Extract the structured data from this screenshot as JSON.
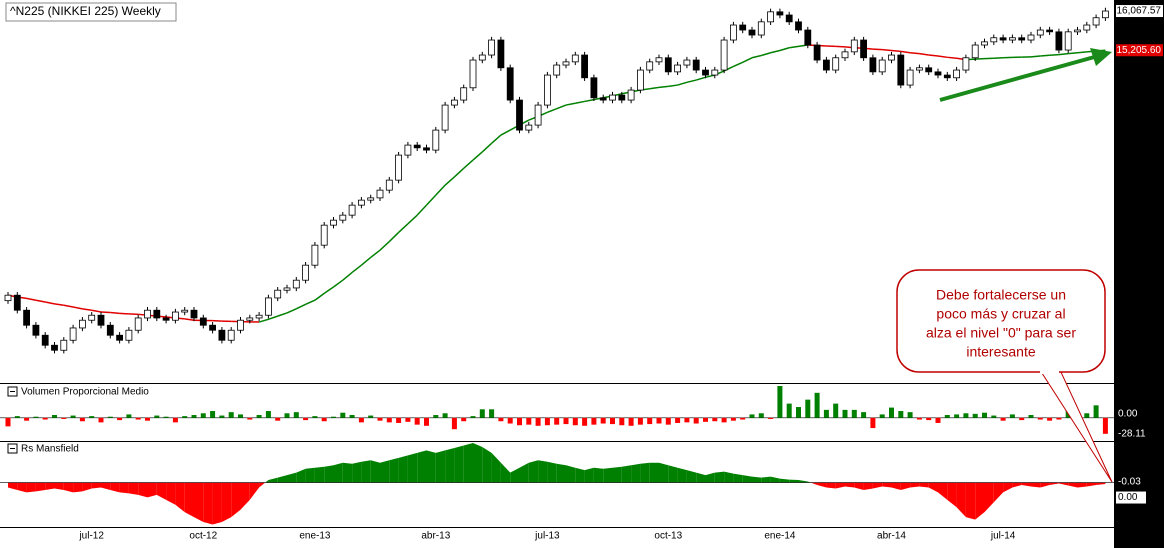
{
  "chart_data": [
    {
      "type": "candlestick",
      "title": "^N225 (NIKKEI 225) Weekly",
      "categories": [
        null,
        null,
        null,
        null,
        null,
        null,
        null,
        null,
        null,
        "jul-12",
        null,
        null,
        null,
        null,
        null,
        null,
        null,
        null,
        null,
        null,
        null,
        "oct-12",
        null,
        null,
        null,
        null,
        null,
        null,
        null,
        null,
        null,
        null,
        null,
        "ene-13",
        null,
        null,
        null,
        null,
        null,
        null,
        null,
        null,
        null,
        null,
        null,
        null,
        "abr-13",
        null,
        null,
        null,
        null,
        null,
        null,
        null,
        null,
        null,
        null,
        null,
        "jul-13",
        null,
        null,
        null,
        null,
        null,
        null,
        null,
        null,
        null,
        null,
        null,
        null,
        "oct-13",
        null,
        null,
        null,
        null,
        null,
        null,
        null,
        null,
        null,
        null,
        null,
        "ene-14",
        null,
        null,
        null,
        null,
        null,
        null,
        null,
        null,
        null,
        null,
        null,
        "abr-14",
        null,
        null,
        null,
        null,
        null,
        null,
        null,
        null,
        null,
        null,
        null,
        "jul-14",
        null,
        null,
        null,
        null,
        null,
        null,
        null,
        null,
        null,
        null,
        null
      ],
      "ohlc": [
        [
          9700,
          9890,
          9630,
          9820
        ],
        [
          9820,
          9890,
          9420,
          9490
        ],
        [
          9490,
          9560,
          9090,
          9160
        ],
        [
          9160,
          9230,
          8870,
          8940
        ],
        [
          8940,
          9010,
          8650,
          8720
        ],
        [
          8720,
          8790,
          8540,
          8610
        ],
        [
          8610,
          8900,
          8540,
          8830
        ],
        [
          8830,
          9170,
          8760,
          9100
        ],
        [
          9100,
          9340,
          9030,
          9270
        ],
        [
          9270,
          9450,
          9200,
          9380
        ],
        [
          9380,
          9450,
          9090,
          9160
        ],
        [
          9160,
          9230,
          8870,
          8940
        ],
        [
          8940,
          9010,
          8760,
          8830
        ],
        [
          8830,
          9120,
          8760,
          9050
        ],
        [
          9050,
          9390,
          8980,
          9320
        ],
        [
          9320,
          9560,
          9250,
          9490
        ],
        [
          9490,
          9560,
          9250,
          9320
        ],
        [
          9320,
          9390,
          9200,
          9270
        ],
        [
          9270,
          9520,
          9200,
          9450
        ],
        [
          9450,
          9560,
          9380,
          9490
        ],
        [
          9490,
          9560,
          9250,
          9320
        ],
        [
          9320,
          9390,
          9090,
          9160
        ],
        [
          9160,
          9230,
          8980,
          9050
        ],
        [
          9050,
          9120,
          8760,
          8830
        ],
        [
          8830,
          9120,
          8760,
          9050
        ],
        [
          9050,
          9340,
          8980,
          9270
        ],
        [
          9270,
          9390,
          9200,
          9320
        ],
        [
          9320,
          9450,
          9250,
          9380
        ],
        [
          9380,
          9830,
          9310,
          9760
        ],
        [
          9760,
          10000,
          9690,
          9930
        ],
        [
          9930,
          10050,
          9860,
          9980
        ],
        [
          9980,
          10220,
          9910,
          10150
        ],
        [
          10150,
          10550,
          10080,
          10480
        ],
        [
          10480,
          10990,
          10410,
          10920
        ],
        [
          10920,
          11430,
          10850,
          11360
        ],
        [
          11360,
          11540,
          11290,
          11470
        ],
        [
          11470,
          11650,
          11400,
          11580
        ],
        [
          11580,
          11870,
          11510,
          11800
        ],
        [
          11800,
          11980,
          11730,
          11910
        ],
        [
          11910,
          12030,
          11840,
          11960
        ],
        [
          11960,
          12200,
          11890,
          12130
        ],
        [
          12130,
          12420,
          12060,
          12350
        ],
        [
          12350,
          12970,
          12280,
          12900
        ],
        [
          12900,
          13190,
          12830,
          13120
        ],
        [
          13120,
          13190,
          12990,
          13060
        ],
        [
          13060,
          13130,
          12940,
          13010
        ],
        [
          13010,
          13520,
          12940,
          13450
        ],
        [
          13450,
          14070,
          13380,
          14000
        ],
        [
          14000,
          14180,
          13930,
          14110
        ],
        [
          14110,
          14450,
          14040,
          14380
        ],
        [
          14380,
          15060,
          14310,
          14990
        ],
        [
          14990,
          15170,
          14920,
          15100
        ],
        [
          15100,
          15500,
          15030,
          15430
        ],
        [
          15430,
          15500,
          14750,
          14820
        ],
        [
          14820,
          14890,
          14040,
          14110
        ],
        [
          14110,
          14180,
          13380,
          13450
        ],
        [
          13450,
          13630,
          13380,
          13560
        ],
        [
          13560,
          14070,
          13490,
          14000
        ],
        [
          14000,
          14730,
          13930,
          14660
        ],
        [
          14660,
          14950,
          14590,
          14880
        ],
        [
          14880,
          15020,
          14810,
          14950
        ],
        [
          14950,
          15170,
          14880,
          15100
        ],
        [
          15100,
          15170,
          14530,
          14600
        ],
        [
          14600,
          14670,
          14090,
          14160
        ],
        [
          14160,
          14230,
          14040,
          14110
        ],
        [
          14110,
          14290,
          14040,
          14220
        ],
        [
          14220,
          14290,
          14040,
          14110
        ],
        [
          14110,
          14400,
          14040,
          14330
        ],
        [
          14330,
          14840,
          14260,
          14770
        ],
        [
          14770,
          15020,
          14700,
          14950
        ],
        [
          14950,
          15110,
          14880,
          15040
        ],
        [
          15040,
          15110,
          14660,
          14730
        ],
        [
          14730,
          14950,
          14660,
          14880
        ],
        [
          14880,
          15060,
          14810,
          14990
        ],
        [
          14990,
          15060,
          14700,
          14770
        ],
        [
          14770,
          14840,
          14590,
          14660
        ],
        [
          14660,
          14840,
          14590,
          14770
        ],
        [
          14770,
          15500,
          14700,
          15430
        ],
        [
          15430,
          15830,
          15360,
          15760
        ],
        [
          15760,
          15830,
          15580,
          15650
        ],
        [
          15650,
          15720,
          15470,
          15540
        ],
        [
          15540,
          15900,
          15470,
          15830
        ],
        [
          15830,
          16120,
          15760,
          16050
        ],
        [
          16050,
          16120,
          15910,
          15980
        ],
        [
          15980,
          16050,
          15760,
          15830
        ],
        [
          15830,
          15900,
          15580,
          15650
        ],
        [
          15650,
          15720,
          15250,
          15320
        ],
        [
          15320,
          15390,
          14920,
          14990
        ],
        [
          14990,
          15060,
          14700,
          14770
        ],
        [
          14770,
          15110,
          14700,
          15040
        ],
        [
          15040,
          15240,
          14970,
          15170
        ],
        [
          15170,
          15500,
          15100,
          15430
        ],
        [
          15430,
          15500,
          14970,
          15040
        ],
        [
          15040,
          15110,
          14660,
          14730
        ],
        [
          14730,
          15060,
          14660,
          14990
        ],
        [
          14990,
          15170,
          14920,
          15100
        ],
        [
          15100,
          15170,
          14370,
          14440
        ],
        [
          14440,
          14840,
          14370,
          14770
        ],
        [
          14770,
          14890,
          14700,
          14820
        ],
        [
          14820,
          14890,
          14660,
          14730
        ],
        [
          14730,
          14800,
          14590,
          14660
        ],
        [
          14660,
          14730,
          14530,
          14600
        ],
        [
          14600,
          14840,
          14530,
          14770
        ],
        [
          14770,
          15110,
          14700,
          15040
        ],
        [
          15040,
          15390,
          14970,
          15320
        ],
        [
          15320,
          15460,
          15250,
          15390
        ],
        [
          15390,
          15550,
          15320,
          15480
        ],
        [
          15480,
          15550,
          15360,
          15430
        ],
        [
          15430,
          15550,
          15360,
          15480
        ],
        [
          15480,
          15550,
          15360,
          15430
        ],
        [
          15430,
          15610,
          15360,
          15540
        ],
        [
          15540,
          15720,
          15470,
          15650
        ],
        [
          15650,
          15720,
          15540,
          15610
        ],
        [
          15610,
          15680,
          15140,
          15210
        ],
        [
          15210,
          15680,
          15140,
          15610
        ],
        [
          15610,
          15720,
          15540,
          15650
        ],
        [
          15650,
          15830,
          15580,
          15760
        ],
        [
          15760,
          15990,
          15690,
          15920
        ],
        [
          15920,
          16140,
          15850,
          16067.57
        ]
      ],
      "close_label": "16,067.57",
      "up_color": "#ffffff",
      "down_color": "#000000",
      "ma_values": [
        9820,
        9780,
        9750,
        9710,
        9670,
        9630,
        9600,
        9560,
        9520,
        9490,
        9450,
        9440,
        9420,
        9410,
        9400,
        9380,
        9360,
        9340,
        9320,
        9300,
        9270,
        9265,
        9260,
        9250,
        9245,
        9240,
        9235,
        9230,
        9290,
        9360,
        9430,
        9520,
        9620,
        9710,
        9860,
        10000,
        10150,
        10320,
        10480,
        10650,
        10810,
        11000,
        11200,
        11390,
        11580,
        11800,
        12020,
        12240,
        12420,
        12610,
        12790,
        12970,
        13160,
        13340,
        13450,
        13560,
        13670,
        13750,
        13840,
        13920,
        14000,
        14040,
        14080,
        14120,
        14160,
        14200,
        14250,
        14290,
        14330,
        14360,
        14390,
        14410,
        14440,
        14500,
        14550,
        14610,
        14660,
        14750,
        14850,
        14940,
        15040,
        15090,
        15150,
        15200,
        15260,
        15290,
        15320,
        15310,
        15300,
        15290,
        15280,
        15260,
        15250,
        15230,
        15220,
        15200,
        15180,
        15150,
        15130,
        15100,
        15080,
        15050,
        15030,
        15000,
        15010,
        15020,
        15030,
        15040,
        15050,
        15055,
        15060,
        15080,
        15095,
        15110,
        15130,
        15150,
        15170,
        15190,
        15205.6
      ],
      "ma_label": "15,205.60",
      "rising_color": "#008000",
      "falling_color": "#e00000",
      "ylim": [
        7890,
        16310
      ],
      "annotation": [
        "Debe fortalecerse un",
        "poco más y cruzar al",
        "alza el nivel \"0\" para ser",
        "interesante"
      ]
    },
    {
      "type": "bar",
      "title": "Volumen Proporcional Medio",
      "values": [
        -15,
        3,
        -5,
        2,
        -3,
        5,
        -2,
        4,
        -6,
        3,
        -8,
        2,
        -4,
        6,
        -3,
        -5,
        4,
        2,
        -8,
        3,
        5,
        8,
        12,
        4,
        10,
        6,
        -3,
        5,
        12,
        -5,
        8,
        10,
        -4,
        3,
        -6,
        2,
        9,
        5,
        -8,
        4,
        -5,
        -8,
        -9,
        -7,
        -12,
        -14,
        5,
        8,
        -20,
        -6,
        3,
        15,
        15,
        -6,
        -10,
        -13,
        -12,
        -14,
        -13,
        -12,
        -11,
        -13,
        -14,
        -12,
        -10,
        -11,
        -13,
        -14,
        -12,
        -11,
        -10,
        -12,
        -9,
        -8,
        -10,
        -7,
        -6,
        -8,
        -5,
        -3,
        6,
        8,
        -2,
        56,
        25,
        19,
        32,
        44,
        14,
        25,
        14,
        14,
        10,
        -18,
        6,
        18,
        12,
        10,
        -3,
        -4,
        -9,
        5,
        6,
        8,
        7,
        9,
        4,
        -5,
        6,
        -4,
        5,
        -3,
        -5,
        -3,
        19,
        -5,
        8,
        22,
        -28.11
      ],
      "last_label": "-28.11",
      "ylim": [
        -39,
        56
      ],
      "yticks": [
        {
          "value": 0,
          "label": "0.00"
        }
      ],
      "positive_color": "#008000",
      "negative_color": "#ff0000"
    },
    {
      "type": "area",
      "title": "Rs Mansfield",
      "values": [
        -0.1,
        -0.15,
        -0.2,
        -0.18,
        -0.15,
        -0.12,
        -0.15,
        -0.2,
        -0.18,
        -0.12,
        -0.1,
        -0.15,
        -0.2,
        -0.22,
        -0.25,
        -0.3,
        -0.25,
        -0.35,
        -0.45,
        -0.6,
        -0.7,
        -0.8,
        -0.85,
        -0.8,
        -0.7,
        -0.55,
        -0.35,
        -0.1,
        0.05,
        0.1,
        0.15,
        0.2,
        0.28,
        0.3,
        0.32,
        0.35,
        0.4,
        0.38,
        0.42,
        0.45,
        0.4,
        0.45,
        0.5,
        0.55,
        0.6,
        0.65,
        0.6,
        0.65,
        0.7,
        0.75,
        0.8,
        0.72,
        0.6,
        0.4,
        0.2,
        0.3,
        0.4,
        0.45,
        0.42,
        0.38,
        0.35,
        0.3,
        0.25,
        0.3,
        0.28,
        0.3,
        0.32,
        0.35,
        0.38,
        0.4,
        0.4,
        0.35,
        0.3,
        0.25,
        0.2,
        0.15,
        0.2,
        0.22,
        0.18,
        0.15,
        0.12,
        0.1,
        0.12,
        0.08,
        0.06,
        0.05,
        0.02,
        -0.05,
        -0.1,
        -0.12,
        -0.08,
        -0.1,
        -0.15,
        -0.12,
        -0.08,
        -0.1,
        -0.15,
        -0.1,
        -0.08,
        -0.1,
        -0.2,
        -0.35,
        -0.5,
        -0.7,
        -0.75,
        -0.6,
        -0.4,
        -0.2,
        -0.1,
        -0.05,
        -0.08,
        -0.1,
        -0.05,
        -0.02,
        -0.06,
        -0.1,
        -0.08,
        -0.05,
        -0.03
      ],
      "last_label": "-0.03",
      "ylim": [
        -0.9,
        0.8
      ],
      "yticks": [
        {
          "value": 0,
          "label": "0.00"
        }
      ],
      "positive_color": "#008000",
      "negative_color": "#ff0000"
    }
  ]
}
